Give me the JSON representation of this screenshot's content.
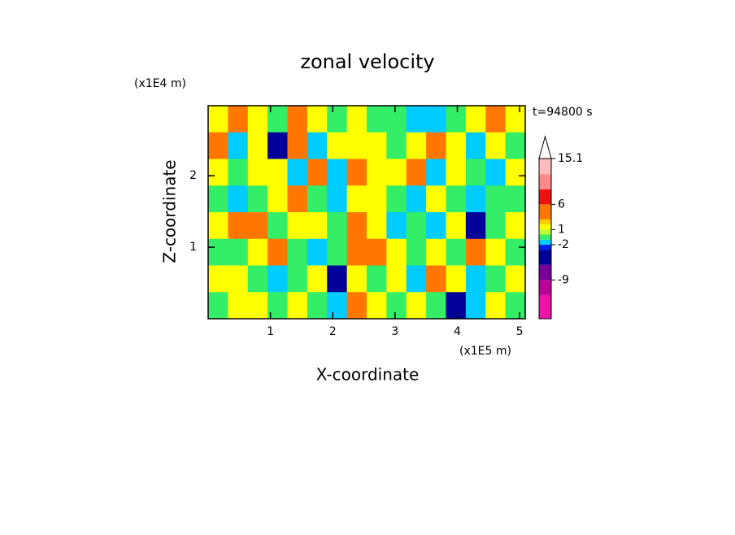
{
  "chart_data": {
    "type": "contour",
    "title": "zonal velocity",
    "x_label": "X-coordinate",
    "y_label": "Z-coordinate",
    "x_unit": "(x1E5 m)",
    "y_unit": "(x1E4 m)",
    "time_label": "t=94800 s",
    "xlim": [
      0,
      5.09
    ],
    "ylim": [
      0,
      2.98
    ],
    "xticks": [
      1,
      2,
      3,
      4,
      5
    ],
    "yticks": [
      1,
      2
    ],
    "values": [
      [
        1.5,
        4,
        1.5,
        -0.5,
        4,
        1.5,
        -0.5,
        1.5,
        -0.5,
        -0.5,
        -1.5,
        -1.5,
        -0.5,
        1.5,
        4,
        1.5
      ],
      [
        4,
        -1.5,
        1.5,
        -4,
        4,
        -1.5,
        1.5,
        1.5,
        1.5,
        -0.5,
        1.5,
        4,
        1.5,
        -1.5,
        1.5,
        -0.5
      ],
      [
        1.5,
        -0.5,
        1.5,
        1.5,
        -1.5,
        4,
        -1.5,
        4,
        1.5,
        1.5,
        4,
        -1.5,
        1.5,
        -0.5,
        -1.5,
        1.5
      ],
      [
        -0.5,
        -1.5,
        -0.5,
        1.5,
        4,
        -0.5,
        -1.5,
        1.5,
        1.5,
        -0.5,
        -1.5,
        1.5,
        -0.5,
        -1.5,
        -0.5,
        -0.5
      ],
      [
        1.5,
        4,
        4,
        -0.5,
        1.5,
        1.5,
        -0.5,
        4,
        1.5,
        -1.5,
        -0.5,
        -1.5,
        1.5,
        -4,
        -0.5,
        1.5
      ],
      [
        -0.5,
        -0.5,
        1.5,
        4,
        -0.5,
        -1.5,
        -0.5,
        4,
        4,
        1.5,
        -0.5,
        1.5,
        -0.5,
        4,
        1.5,
        -0.5
      ],
      [
        1.5,
        1.5,
        -0.5,
        -1.5,
        -0.5,
        1.5,
        -4,
        1.5,
        -0.5,
        1.5,
        -1.5,
        4,
        1.5,
        -1.5,
        -0.5,
        1.5
      ],
      [
        -0.5,
        1.5,
        1.5,
        -0.5,
        1.5,
        -0.5,
        -1.5,
        4,
        1.5,
        -0.5,
        1.5,
        -0.5,
        -4,
        -1.5,
        1.5,
        -0.5
      ]
    ],
    "colorbar": {
      "levels": [
        -16.7,
        -12,
        -9,
        -6,
        -3,
        -2,
        -1,
        0,
        1,
        2,
        3,
        6,
        9,
        12,
        15.1
      ],
      "colors": [
        "#ee11aa",
        "#bb0099",
        "#770099",
        "#000099",
        "#0022ee",
        "#00ccff",
        "#33ee66",
        "#bbff33",
        "#ffff00",
        "#ffcc00",
        "#ff7700",
        "#ee1111",
        "#ff8888",
        "#ffbbbb"
      ],
      "ticks": [
        15.1,
        6,
        1,
        -2,
        -9
      ]
    }
  }
}
